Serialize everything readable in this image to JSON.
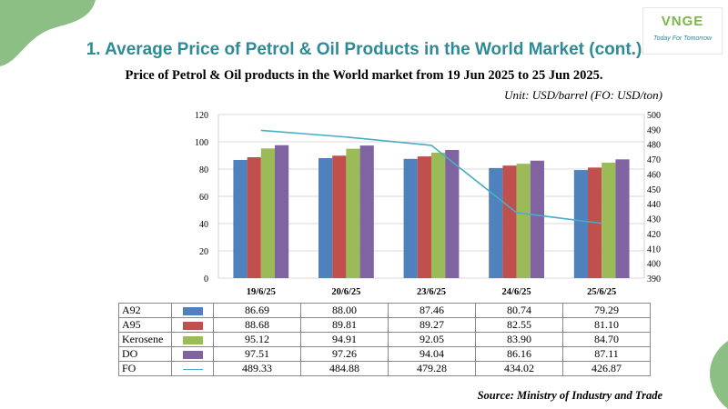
{
  "slide": {
    "title": "1. Average Price of Petrol & Oil Products in the World Market (cont.)",
    "subtitle": "Price of Petrol & Oil products in the World market from 19 Jun 2025 to 25 Jun 2025.",
    "unit": "Unit: USD/barrel (FO: USD/ton)",
    "source": "Source: Ministry of Industry and Trade"
  },
  "logo": {
    "word": "VNGE",
    "tagline": "Today For Tomorrow"
  },
  "colors": {
    "accent": "#2e8a96",
    "blob": "#8cbf84"
  },
  "chart_data": {
    "type": "bar",
    "categories": [
      "19/6/25",
      "20/6/25",
      "23/6/25",
      "24/6/25",
      "25/6/25"
    ],
    "series": [
      {
        "name": "A92",
        "kind": "bar",
        "axis": "left",
        "color": "#4f81bd",
        "values": [
          86.69,
          88.0,
          87.46,
          80.74,
          79.29
        ],
        "labels": [
          "86.69",
          "88.00",
          "87.46",
          "80.74",
          "79.29"
        ]
      },
      {
        "name": "A95",
        "kind": "bar",
        "axis": "left",
        "color": "#c0504d",
        "values": [
          88.68,
          89.81,
          89.27,
          82.55,
          81.1
        ],
        "labels": [
          "88.68",
          "89.81",
          "89.27",
          "82.55",
          "81.10"
        ]
      },
      {
        "name": "Kerosene",
        "kind": "bar",
        "axis": "left",
        "color": "#9bbb59",
        "values": [
          95.12,
          94.91,
          92.05,
          83.9,
          84.7
        ],
        "labels": [
          "95.12",
          "94.91",
          "92.05",
          "83.90",
          "84.70"
        ]
      },
      {
        "name": "DO",
        "kind": "bar",
        "axis": "left",
        "color": "#8064a2",
        "values": [
          97.51,
          97.26,
          94.04,
          86.16,
          87.11
        ],
        "labels": [
          "97.51",
          "97.26",
          "94.04",
          "86.16",
          "87.11"
        ]
      },
      {
        "name": "FO",
        "kind": "line",
        "axis": "right",
        "color": "#4aacc6",
        "values": [
          489.33,
          484.88,
          479.28,
          434.02,
          426.87
        ],
        "labels": [
          "489.33",
          "484.88",
          "479.28",
          "434.02",
          "426.87"
        ]
      }
    ],
    "left_axis": {
      "min": 0,
      "max": 120,
      "ticks": [
        "0",
        "20",
        "40",
        "60",
        "80",
        "100",
        "120"
      ]
    },
    "right_axis": {
      "min": 390,
      "max": 500,
      "ticks": [
        "390",
        "400",
        "410",
        "420",
        "430",
        "440",
        "450",
        "460",
        "470",
        "480",
        "490",
        "500"
      ]
    },
    "grid": true,
    "legend": "data table below chart"
  }
}
